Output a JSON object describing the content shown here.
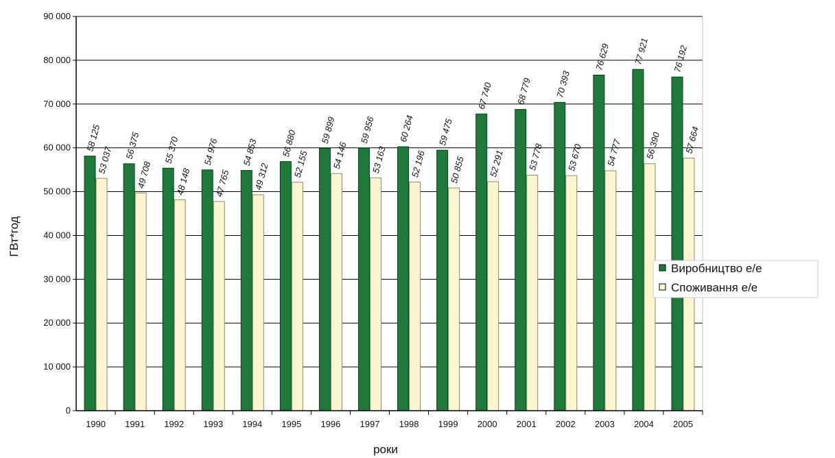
{
  "chart_data": {
    "type": "bar",
    "categories": [
      "1990",
      "1991",
      "1992",
      "1993",
      "1994",
      "1995",
      "1996",
      "1997",
      "1998",
      "1999",
      "2000",
      "2001",
      "2002",
      "2003",
      "2004",
      "2005"
    ],
    "series": [
      {
        "name": "Виробництво е/е",
        "color": "#1e7a3a",
        "values": [
          58125,
          56375,
          55370,
          54976,
          54853,
          56880,
          59899,
          59956,
          60264,
          59475,
          67740,
          68779,
          70393,
          76629,
          77921,
          76192
        ],
        "labels": [
          "58 125",
          "56 375",
          "55 370",
          "54 976",
          "54 853",
          "56 880",
          "59 899",
          "59 956",
          "60 264",
          "59 475",
          "67 740",
          "68 779",
          "70 393",
          "76 629",
          "77 921",
          "76 192"
        ]
      },
      {
        "name": "Споживання е/е",
        "color": "#fbf6cf",
        "values": [
          53037,
          49708,
          48148,
          47765,
          49312,
          52155,
          54146,
          53163,
          52196,
          50855,
          52291,
          53778,
          53670,
          54777,
          56390,
          57664
        ],
        "labels": [
          "53 037",
          "49 708",
          "48 148",
          "47 765",
          "49 312",
          "52 155",
          "54 146",
          "53 163",
          "52 196",
          "50 855",
          "52 291",
          "53 778",
          "53 670",
          "54 777",
          "56 390",
          "57 664"
        ]
      }
    ],
    "xlabel": "роки",
    "ylabel": "ГВт*год",
    "ylim": [
      0,
      90000
    ],
    "yticks": [
      0,
      10000,
      20000,
      30000,
      40000,
      50000,
      60000,
      70000,
      80000,
      90000
    ],
    "ytick_labels": [
      "0",
      "10 000",
      "20 000",
      "30 000",
      "40 000",
      "50 000",
      "60 000",
      "70 000",
      "80 000",
      "90 000"
    ],
    "grid": true,
    "legend_position": "right"
  }
}
